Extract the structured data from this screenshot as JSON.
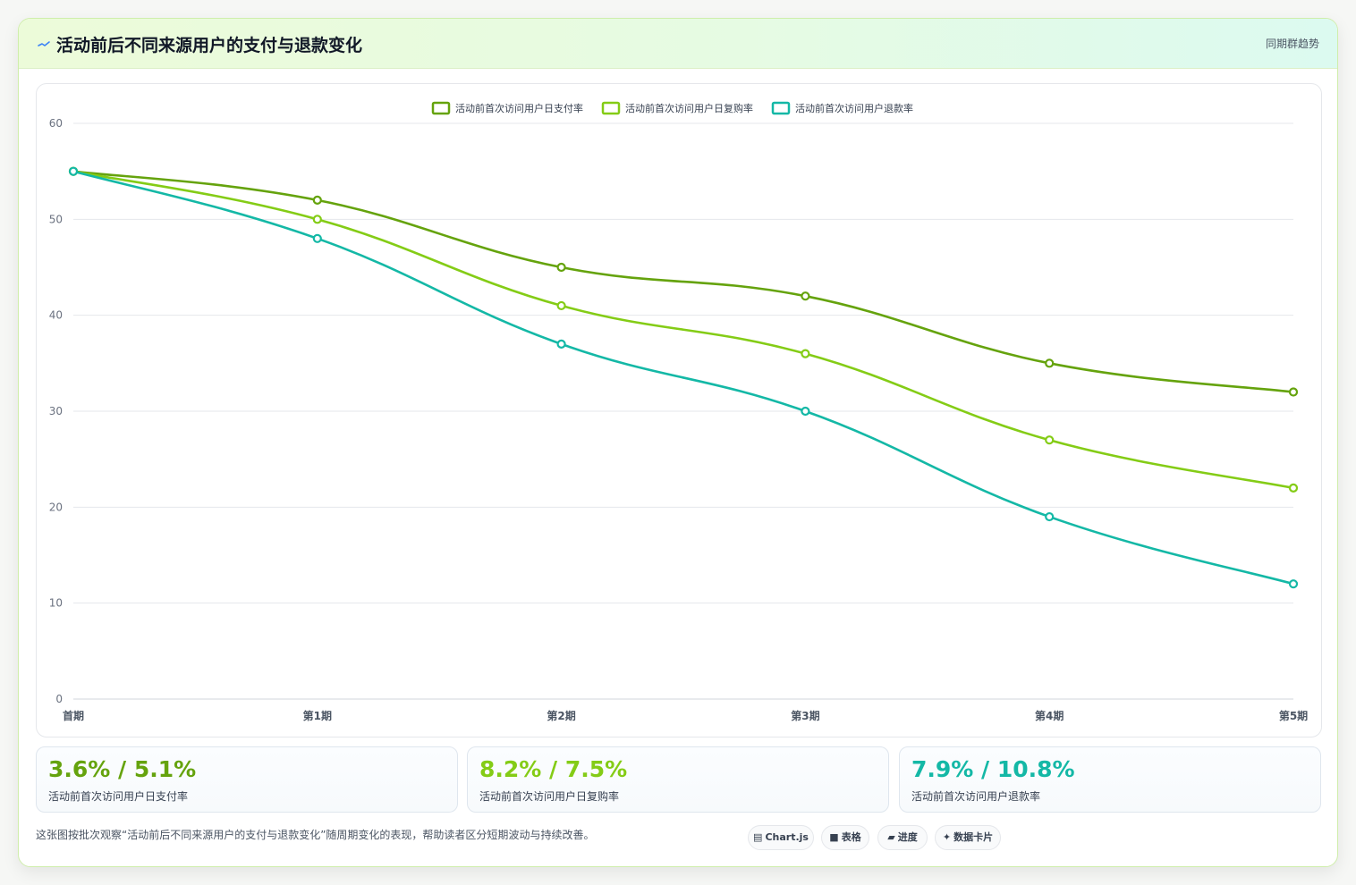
{
  "header": {
    "icon": "sparkline-icon",
    "title": "活动前后不同来源用户的支付与退款变化",
    "meta": "同期群趋势"
  },
  "chart_data": {
    "type": "line",
    "title": "",
    "xlabel": "",
    "ylabel": "",
    "categories": [
      "首期",
      "第1期",
      "第2期",
      "第3期",
      "第4期",
      "第5期"
    ],
    "ylim": [
      0,
      60
    ],
    "yticks": [
      0,
      10,
      20,
      30,
      40,
      50,
      60
    ],
    "grid": true,
    "legend_position": "top-center",
    "series": [
      {
        "name": "活动前首次访问用户日支付率",
        "color": "#65a30d",
        "values": [
          55,
          52,
          45,
          42,
          35,
          32
        ]
      },
      {
        "name": "活动前首次访问用户日复购率",
        "color": "#84cc16",
        "values": [
          55,
          50,
          41,
          36,
          27,
          22
        ]
      },
      {
        "name": "活动前首次访问用户退款率",
        "color": "#14b8a6",
        "values": [
          55,
          48,
          37,
          30,
          19,
          12
        ]
      }
    ]
  },
  "stats": [
    {
      "value": "3.6% / 5.1%",
      "label": "活动前首次访问用户日支付率",
      "color": "#65a30d"
    },
    {
      "value": "8.2% / 7.5%",
      "label": "活动前首次访问用户日复购率",
      "color": "#84cc16"
    },
    {
      "value": "7.9% / 10.8%",
      "label": "活动前首次访问用户退款率",
      "color": "#14b8a6"
    }
  ],
  "caption": "这张图按批次观察“活动前后不同来源用户的支付与退款变化”随周期变化的表现，帮助读者区分短期波动与持续改善。",
  "chips": [
    {
      "icon": "▤",
      "label": "Chart.js",
      "icon_name": "chart-icon"
    },
    {
      "icon": "■",
      "label": "表格",
      "icon_name": "table-icon"
    },
    {
      "icon": "▰",
      "label": "进度",
      "icon_name": "progress-icon"
    },
    {
      "icon": "✦",
      "label": "数据卡片",
      "icon_name": "card-icon"
    }
  ]
}
